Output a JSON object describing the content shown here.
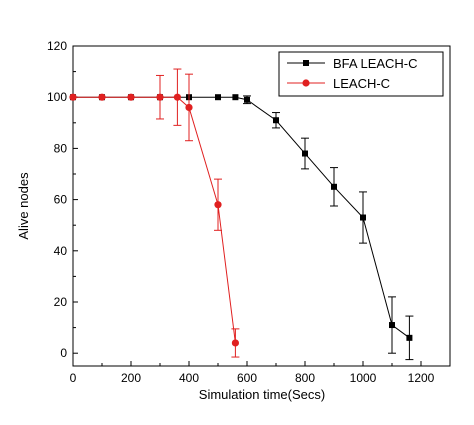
{
  "chart_data": {
    "type": "line",
    "xlabel": "Simulation time(Secs)",
    "ylabel": "Alive nodes",
    "xlim": [
      0,
      1300
    ],
    "ylim": [
      -5,
      120
    ],
    "xticks": [
      0,
      200,
      400,
      600,
      800,
      1000,
      1200
    ],
    "yticks": [
      0,
      20,
      40,
      60,
      80,
      100,
      120
    ],
    "legend_position": "top-right",
    "grid": false,
    "series": [
      {
        "name": "BFA LEACH-C",
        "color": "#000000",
        "marker": "square",
        "x": [
          0,
          100,
          200,
          300,
          400,
          500,
          560,
          600,
          700,
          800,
          900,
          1000,
          1100,
          1160
        ],
        "y": [
          100,
          100,
          100,
          100,
          100,
          100,
          100,
          99,
          91,
          78,
          65,
          53,
          11,
          6
        ],
        "err": [
          0,
          0,
          0,
          0,
          0,
          0,
          0,
          1.5,
          3,
          6,
          7.5,
          10,
          11,
          8.5
        ]
      },
      {
        "name": "LEACH-C",
        "color": "#e02020",
        "marker": "circle",
        "x": [
          0,
          100,
          200,
          300,
          360,
          400,
          500,
          560
        ],
        "y": [
          100,
          100,
          100,
          100,
          100,
          96,
          58,
          4
        ],
        "err": [
          0,
          0,
          0,
          8.5,
          11,
          13,
          10,
          5.5
        ]
      }
    ]
  }
}
